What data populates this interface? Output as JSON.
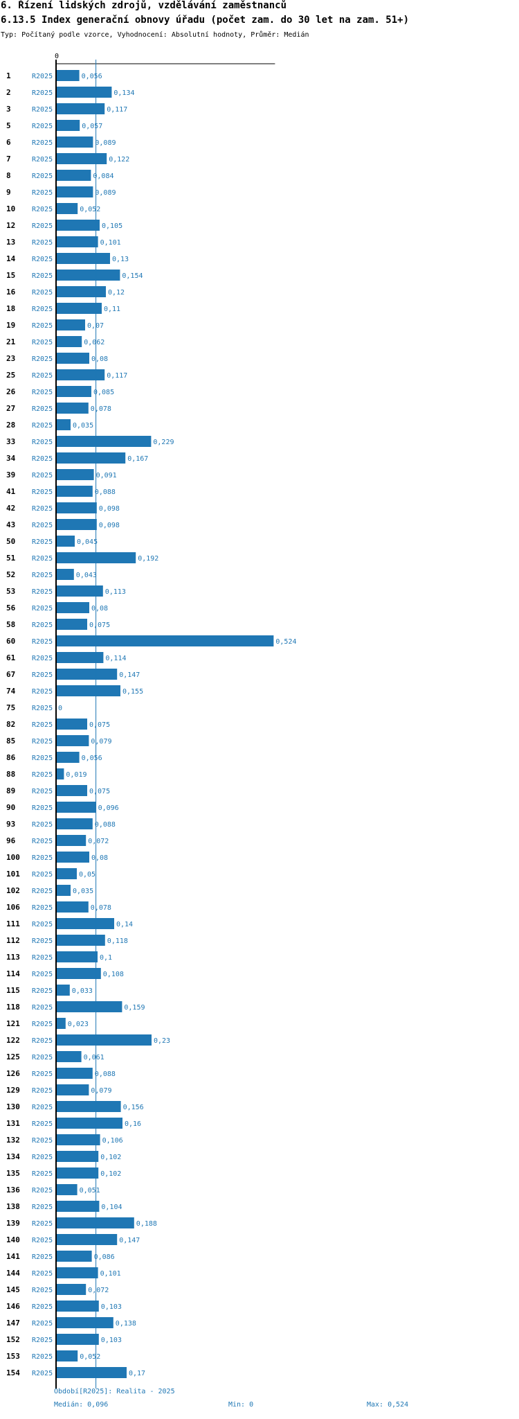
{
  "header": {
    "title": "6. Řízení lidských zdrojů, vzdělávání zaměstnanců",
    "subtitle": "6.13.5 Index generační obnovy úřadu (počet zam. do 30 let na zam. 51+)",
    "meta": "Typ: Počítaný podle vzorce, Vyhodnocení: Absolutní hodnoty, Průměr: Medián"
  },
  "footer": {
    "period": "Období[R2025]: Realita - 2025",
    "median": "Medián: 0,096",
    "min": "Min: 0",
    "max": "Max: 0,524"
  },
  "colors": {
    "bar": "#1f77b4",
    "axis": "#000000",
    "median_line": "#1f77b4",
    "series_label": "#1f77b4"
  },
  "chart_data": {
    "type": "bar",
    "orientation": "horizontal",
    "series_name": "R2025",
    "axis_zero_label": "0",
    "xlim": [
      0,
      0.524
    ],
    "median": 0.096,
    "categories": [
      "1",
      "2",
      "3",
      "5",
      "6",
      "7",
      "8",
      "9",
      "10",
      "12",
      "13",
      "14",
      "15",
      "16",
      "18",
      "19",
      "21",
      "23",
      "25",
      "26",
      "27",
      "28",
      "33",
      "34",
      "39",
      "41",
      "42",
      "43",
      "50",
      "51",
      "52",
      "53",
      "56",
      "58",
      "60",
      "61",
      "67",
      "74",
      "75",
      "82",
      "85",
      "86",
      "88",
      "89",
      "90",
      "93",
      "96",
      "100",
      "101",
      "102",
      "106",
      "111",
      "112",
      "113",
      "114",
      "115",
      "118",
      "121",
      "122",
      "125",
      "126",
      "129",
      "130",
      "131",
      "132",
      "134",
      "135",
      "136",
      "138",
      "139",
      "140",
      "141",
      "144",
      "145",
      "146",
      "147",
      "152",
      "153",
      "154"
    ],
    "values": [
      0.056,
      0.134,
      0.117,
      0.057,
      0.089,
      0.122,
      0.084,
      0.089,
      0.052,
      0.105,
      0.101,
      0.13,
      0.154,
      0.12,
      0.11,
      0.07,
      0.062,
      0.08,
      0.117,
      0.085,
      0.078,
      0.035,
      0.229,
      0.167,
      0.091,
      0.088,
      0.098,
      0.098,
      0.045,
      0.192,
      0.043,
      0.113,
      0.08,
      0.075,
      0.524,
      0.114,
      0.147,
      0.155,
      0,
      0.075,
      0.079,
      0.056,
      0.019,
      0.075,
      0.096,
      0.088,
      0.072,
      0.08,
      0.05,
      0.035,
      0.078,
      0.14,
      0.118,
      0.1,
      0.108,
      0.033,
      0.159,
      0.023,
      0.23,
      0.061,
      0.088,
      0.079,
      0.156,
      0.16,
      0.106,
      0.102,
      0.102,
      0.051,
      0.104,
      0.188,
      0.147,
      0.086,
      0.101,
      0.072,
      0.103,
      0.138,
      0.103,
      0.052,
      0.17
    ],
    "value_labels": [
      "0,056",
      "0,134",
      "0,117",
      "0,057",
      "0,089",
      "0,122",
      "0,084",
      "0,089",
      "0,052",
      "0,105",
      "0,101",
      "0,13",
      "0,154",
      "0,12",
      "0,11",
      "0,07",
      "0,062",
      "0,08",
      "0,117",
      "0,085",
      "0,078",
      "0,035",
      "0,229",
      "0,167",
      "0,091",
      "0,088",
      "0,098",
      "0,098",
      "0,045",
      "0,192",
      "0,043",
      "0,113",
      "0,08",
      "0,075",
      "0,524",
      "0,114",
      "0,147",
      "0,155",
      "0",
      "0,075",
      "0,079",
      "0,056",
      "0,019",
      "0,075",
      "0,096",
      "0,088",
      "0,072",
      "0,08",
      "0,05",
      "0,035",
      "0,078",
      "0,14",
      "0,118",
      "0,1",
      "0,108",
      "0,033",
      "0,159",
      "0,023",
      "0,23",
      "0,061",
      "0,088",
      "0,079",
      "0,156",
      "0,16",
      "0,106",
      "0,102",
      "0,102",
      "0,051",
      "0,104",
      "0,188",
      "0,147",
      "0,086",
      "0,101",
      "0,072",
      "0,103",
      "0,138",
      "0,103",
      "0,052",
      "0,17"
    ]
  }
}
